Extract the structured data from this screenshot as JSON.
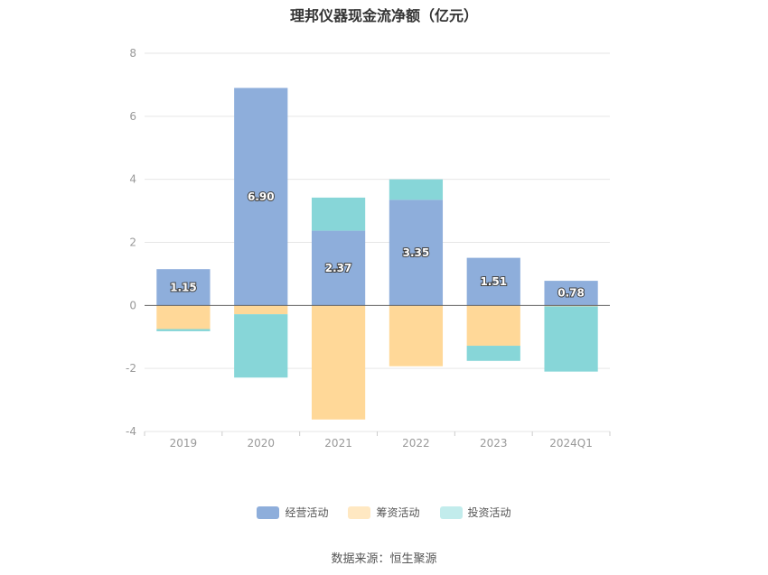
{
  "chart_data": {
    "type": "bar",
    "stacked": true,
    "title": "理邦仪器现金流净额（亿元）",
    "categories": [
      "2019",
      "2020",
      "2021",
      "2022",
      "2023",
      "2024Q1"
    ],
    "series": [
      {
        "name": "经营活动",
        "color": "#8eaedb",
        "values": [
          1.15,
          6.9,
          2.37,
          3.35,
          1.51,
          0.78
        ],
        "labels": [
          "1.15",
          "6.90",
          "2.37",
          "3.35",
          "1.51",
          "0.78"
        ]
      },
      {
        "name": "筹资活动",
        "color": "#ffd898",
        "values": [
          -0.75,
          -0.28,
          -3.62,
          -1.93,
          -1.28,
          -0.03
        ]
      },
      {
        "name": "投资活动",
        "color": "#87d6d8",
        "values": [
          -0.07,
          -2.01,
          1.05,
          0.65,
          -0.48,
          -2.07
        ]
      }
    ],
    "ylim": [
      -4,
      8
    ],
    "yticks": [
      "8",
      "6",
      "4",
      "2",
      "0",
      "-2",
      "-4"
    ],
    "grid": true,
    "legend_position": "bottom"
  },
  "legend": [
    {
      "label": "经营活动",
      "color": "#8eaedb"
    },
    {
      "label": "筹资活动",
      "color": "#ffe8c2"
    },
    {
      "label": "投资活动",
      "color": "#c2ecec"
    }
  ],
  "source": "数据来源：恒生聚源"
}
